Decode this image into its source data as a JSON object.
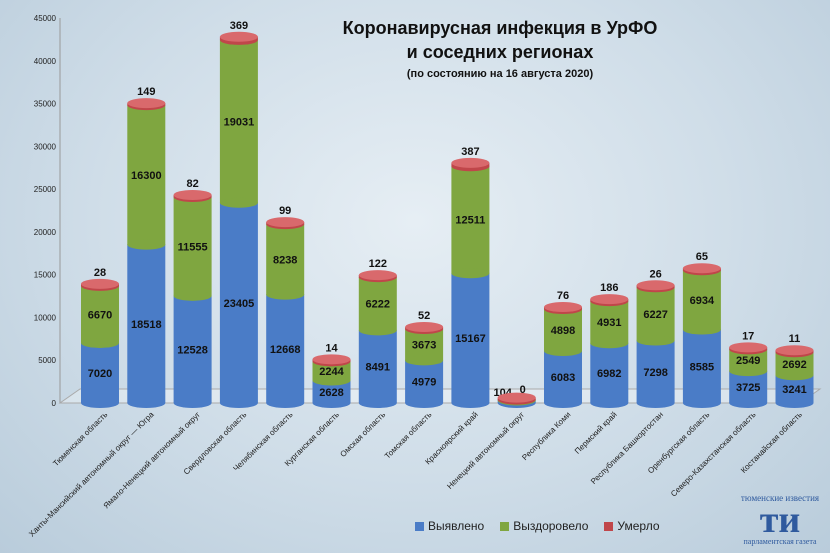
{
  "chart_data": {
    "type": "bar",
    "stacked": true,
    "title": "Коронавирусная инфекция в УрФО",
    "title_line2": "и соседних регионах",
    "subtitle": "(по состоянию на 16 августа 2020)",
    "ylim": [
      0,
      45000
    ],
    "yticks": [
      0,
      5000,
      10000,
      15000,
      20000,
      25000,
      30000,
      35000,
      40000,
      45000
    ],
    "legend_position": "bottom",
    "categories": [
      "Тюменская область",
      "Ханты-Мансийский автономный округ — Югра",
      "Ямало-Ненецкий автономный округ",
      "Свердловская область",
      "Челябинская область",
      "Курганская область",
      "Омская область",
      "Томская область",
      "Красноярский край",
      "Ненецкий автономный округ",
      "Республика Коми",
      "Пермский край",
      "Республика Башкортостан",
      "Оренбургская область",
      "Северо-Казахстанская область",
      "Костанайская область"
    ],
    "series": [
      {
        "name": "Выявлено",
        "color": "#4a7cc7",
        "values": [
          7020,
          18518,
          12528,
          23405,
          12668,
          2628,
          8491,
          4979,
          15167,
          297,
          6083,
          6982,
          7298,
          8585,
          3725,
          3241
        ]
      },
      {
        "name": "Выздоровело",
        "color": "#7fa640",
        "values": [
          6670,
          16300,
          11555,
          19031,
          8238,
          2244,
          6222,
          3673,
          12511,
          104,
          4898,
          4931,
          6227,
          6934,
          2549,
          2692
        ]
      },
      {
        "name": "Умерло",
        "color": "#c0464a",
        "values": [
          28,
          149,
          82,
          369,
          99,
          14,
          122,
          52,
          387,
          0,
          76,
          186,
          26,
          65,
          17,
          11
        ]
      }
    ]
  },
  "logo": {
    "top": "тюменские известия",
    "mark": "ти",
    "bottom": "парламентская газета"
  }
}
